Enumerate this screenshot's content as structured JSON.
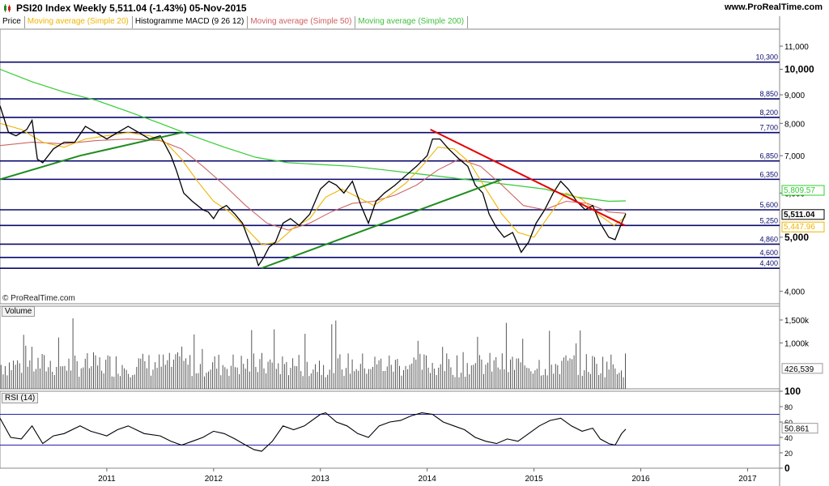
{
  "header": {
    "title": "PSI20 Index   Weekly   5,511.04 (-1.43%)   05-Nov-2015",
    "source": "www.ProRealTime.com",
    "copyright": "© ProRealTime.com"
  },
  "legend": [
    {
      "label": "Price",
      "color": "#000000"
    },
    {
      "label": "Moving average (Simple 20)",
      "color": "#f0b400"
    },
    {
      "label": "Histogramme MACD (9 26 12)",
      "color": "#000000"
    },
    {
      "label": "Moving average (Simple 50)",
      "color": "#d06060"
    },
    {
      "label": "Moving average (Simple 200)",
      "color": "#40c040"
    }
  ],
  "colors": {
    "price": "#000000",
    "ma20": "#f0b400",
    "ma50": "#cc6666",
    "ma200": "#33cc33",
    "support_lines": "#0a0a6e",
    "trend_green": "#1e8c1e",
    "trend_red": "#e60000",
    "rsi_line": "#000000",
    "rsi_band": "#2222aa"
  },
  "chart_data": [
    {
      "type": "line",
      "name": "price",
      "scale": "log",
      "ylim": [
        3800,
        11800
      ],
      "x_range": [
        2010.0,
        2017.3
      ],
      "x_ticks": [
        "2011",
        "2012",
        "2013",
        "2014",
        "2015",
        "2016",
        "2017"
      ],
      "x_tick_values": [
        2011,
        2012,
        2013,
        2014,
        2015,
        2016,
        2017
      ],
      "y_ticks": [
        4000,
        5000,
        6000,
        7000,
        8000,
        9000,
        10000,
        11000
      ],
      "y_tick_labels": [
        "4,000",
        "5,000",
        "6,000",
        "7,000",
        "8,000",
        "9,000",
        "10,000",
        "11,000"
      ],
      "y_tick_bold": [
        false,
        true,
        false,
        false,
        false,
        false,
        true,
        false
      ],
      "horizontal_levels": [
        10300,
        8850,
        8200,
        7700,
        6850,
        6350,
        5600,
        5250,
        4860,
        4600,
        4400
      ],
      "horizontal_level_labels": [
        "10,300",
        "8,850",
        "8,200",
        "7,700",
        "6,850",
        "6,350",
        "5,600",
        "5,250",
        "4,860",
        "4,600",
        "4,400"
      ],
      "trend_lines": [
        {
          "color": "green",
          "points": [
            [
              2010.0,
              6350
            ],
            [
              2010.75,
              7000
            ],
            [
              2011.7,
              7700
            ]
          ]
        },
        {
          "color": "green",
          "points": [
            [
              2012.45,
              4400
            ],
            [
              2014.7,
              6350
            ]
          ]
        },
        {
          "color": "red",
          "points": [
            [
              2014.03,
              7800
            ],
            [
              2015.85,
              5250
            ]
          ]
        }
      ],
      "price": [
        [
          2010.0,
          8600
        ],
        [
          2010.08,
          7700
        ],
        [
          2010.15,
          7600
        ],
        [
          2010.25,
          7800
        ],
        [
          2010.3,
          8100
        ],
        [
          2010.35,
          6900
        ],
        [
          2010.4,
          6800
        ],
        [
          2010.5,
          7200
        ],
        [
          2010.6,
          7400
        ],
        [
          2010.7,
          7400
        ],
        [
          2010.8,
          7900
        ],
        [
          2010.9,
          7700
        ],
        [
          2011.0,
          7500
        ],
        [
          2011.1,
          7700
        ],
        [
          2011.2,
          7900
        ],
        [
          2011.3,
          7700
        ],
        [
          2011.4,
          7500
        ],
        [
          2011.5,
          7600
        ],
        [
          2011.55,
          7300
        ],
        [
          2011.6,
          7000
        ],
        [
          2011.65,
          6600
        ],
        [
          2011.72,
          6000
        ],
        [
          2011.8,
          5800
        ],
        [
          2011.9,
          5600
        ],
        [
          2011.95,
          5550
        ],
        [
          2012.0,
          5400
        ],
        [
          2012.05,
          5600
        ],
        [
          2012.12,
          5700
        ],
        [
          2012.2,
          5500
        ],
        [
          2012.27,
          5300
        ],
        [
          2012.32,
          5000
        ],
        [
          2012.38,
          4700
        ],
        [
          2012.42,
          4450
        ],
        [
          2012.47,
          4600
        ],
        [
          2012.52,
          4800
        ],
        [
          2012.58,
          4900
        ],
        [
          2012.65,
          5300
        ],
        [
          2012.72,
          5400
        ],
        [
          2012.8,
          5250
        ],
        [
          2012.9,
          5500
        ],
        [
          2013.0,
          6100
        ],
        [
          2013.08,
          6300
        ],
        [
          2013.15,
          6200
        ],
        [
          2013.22,
          6000
        ],
        [
          2013.3,
          6300
        ],
        [
          2013.38,
          5700
        ],
        [
          2013.45,
          5300
        ],
        [
          2013.52,
          5800
        ],
        [
          2013.6,
          6000
        ],
        [
          2013.7,
          6200
        ],
        [
          2013.8,
          6450
        ],
        [
          2013.9,
          6700
        ],
        [
          2014.0,
          7000
        ],
        [
          2014.05,
          7500
        ],
        [
          2014.12,
          7500
        ],
        [
          2014.2,
          7200
        ],
        [
          2014.3,
          6900
        ],
        [
          2014.38,
          6700
        ],
        [
          2014.45,
          6200
        ],
        [
          2014.52,
          6000
        ],
        [
          2014.58,
          5500
        ],
        [
          2014.65,
          5200
        ],
        [
          2014.72,
          5000
        ],
        [
          2014.8,
          5100
        ],
        [
          2014.88,
          4700
        ],
        [
          2014.95,
          4900
        ],
        [
          2015.02,
          5300
        ],
        [
          2015.1,
          5600
        ],
        [
          2015.18,
          6000
        ],
        [
          2015.25,
          6300
        ],
        [
          2015.32,
          6100
        ],
        [
          2015.4,
          5800
        ],
        [
          2015.48,
          5600
        ],
        [
          2015.55,
          5700
        ],
        [
          2015.62,
          5300
        ],
        [
          2015.7,
          5000
        ],
        [
          2015.76,
          4950
        ],
        [
          2015.82,
          5300
        ],
        [
          2015.86,
          5511
        ]
      ],
      "ma20": [
        [
          2010.0,
          8000
        ],
        [
          2010.2,
          7800
        ],
        [
          2010.4,
          7400
        ],
        [
          2010.6,
          7250
        ],
        [
          2010.8,
          7500
        ],
        [
          2011.0,
          7600
        ],
        [
          2011.2,
          7700
        ],
        [
          2011.4,
          7600
        ],
        [
          2011.55,
          7400
        ],
        [
          2011.7,
          6900
        ],
        [
          2011.85,
          6300
        ],
        [
          2012.0,
          5800
        ],
        [
          2012.15,
          5550
        ],
        [
          2012.3,
          5200
        ],
        [
          2012.45,
          4850
        ],
        [
          2012.6,
          4900
        ],
        [
          2012.75,
          5200
        ],
        [
          2012.9,
          5400
        ],
        [
          2013.05,
          5900
        ],
        [
          2013.2,
          6100
        ],
        [
          2013.35,
          5900
        ],
        [
          2013.5,
          5700
        ],
        [
          2013.65,
          5950
        ],
        [
          2013.8,
          6250
        ],
        [
          2013.95,
          6700
        ],
        [
          2014.1,
          7250
        ],
        [
          2014.25,
          7200
        ],
        [
          2014.4,
          6800
        ],
        [
          2014.55,
          6100
        ],
        [
          2014.7,
          5500
        ],
        [
          2014.85,
          5100
        ],
        [
          2015.0,
          5000
        ],
        [
          2015.15,
          5500
        ],
        [
          2015.3,
          6000
        ],
        [
          2015.45,
          5850
        ],
        [
          2015.6,
          5500
        ],
        [
          2015.75,
          5250
        ],
        [
          2015.86,
          5447
        ]
      ],
      "ma50": [
        [
          2010.0,
          7300
        ],
        [
          2010.3,
          7400
        ],
        [
          2010.6,
          7350
        ],
        [
          2010.9,
          7450
        ],
        [
          2011.2,
          7500
        ],
        [
          2011.5,
          7450
        ],
        [
          2011.7,
          7200
        ],
        [
          2011.9,
          6700
        ],
        [
          2012.1,
          6200
        ],
        [
          2012.3,
          5700
        ],
        [
          2012.5,
          5300
        ],
        [
          2012.7,
          5150
        ],
        [
          2012.9,
          5300
        ],
        [
          2013.1,
          5550
        ],
        [
          2013.3,
          5750
        ],
        [
          2013.5,
          5800
        ],
        [
          2013.7,
          5950
        ],
        [
          2013.9,
          6200
        ],
        [
          2014.1,
          6600
        ],
        [
          2014.3,
          6900
        ],
        [
          2014.5,
          6700
        ],
        [
          2014.7,
          6200
        ],
        [
          2014.9,
          5700
        ],
        [
          2015.1,
          5600
        ],
        [
          2015.3,
          5800
        ],
        [
          2015.5,
          5750
        ],
        [
          2015.7,
          5550
        ],
        [
          2015.86,
          5520
        ]
      ],
      "ma200": [
        [
          2010.0,
          10000
        ],
        [
          2010.3,
          9500
        ],
        [
          2010.6,
          9100
        ],
        [
          2010.9,
          8800
        ],
        [
          2011.2,
          8400
        ],
        [
          2011.5,
          8000
        ],
        [
          2011.8,
          7600
        ],
        [
          2012.1,
          7250
        ],
        [
          2012.4,
          6950
        ],
        [
          2012.7,
          6800
        ],
        [
          2013.0,
          6750
        ],
        [
          2013.3,
          6700
        ],
        [
          2013.6,
          6600
        ],
        [
          2013.9,
          6500
        ],
        [
          2014.2,
          6400
        ],
        [
          2014.5,
          6300
        ],
        [
          2014.8,
          6200
        ],
        [
          2015.1,
          6100
        ],
        [
          2015.4,
          5900
        ],
        [
          2015.7,
          5800
        ],
        [
          2015.86,
          5809.57
        ]
      ],
      "last_values": [
        {
          "label": "5,809.57",
          "value": 5809.57,
          "color": "#33cc33"
        },
        {
          "label": "5,511.04",
          "value": 5511.04,
          "color": "#000000"
        },
        {
          "label": "5,447.96",
          "value": 5447.96,
          "color": "#f0b400"
        }
      ]
    },
    {
      "type": "bar",
      "name": "volume",
      "title": "Volume",
      "ylim": [
        0,
        1800000
      ],
      "y_ticks": [
        1000000,
        1500000
      ],
      "y_tick_labels": [
        "1,000k",
        "1,500k"
      ],
      "last_value_label": "426,539",
      "last_value": 426539
    },
    {
      "type": "line",
      "name": "rsi",
      "title": "RSI (14)",
      "ylim": [
        0,
        100
      ],
      "y_ticks": [
        0,
        20,
        40,
        60,
        80,
        100
      ],
      "y_tick_labels": [
        "0",
        "20",
        "40",
        "60",
        "80",
        "100"
      ],
      "bands": [
        30,
        70
      ],
      "last_value_label": "50.861",
      "last_value": 50.861,
      "values": [
        [
          2010.0,
          65
        ],
        [
          2010.1,
          40
        ],
        [
          2010.2,
          38
        ],
        [
          2010.3,
          55
        ],
        [
          2010.4,
          32
        ],
        [
          2010.5,
          42
        ],
        [
          2010.6,
          45
        ],
        [
          2010.75,
          55
        ],
        [
          2010.85,
          48
        ],
        [
          2011.0,
          42
        ],
        [
          2011.1,
          50
        ],
        [
          2011.2,
          55
        ],
        [
          2011.35,
          45
        ],
        [
          2011.5,
          42
        ],
        [
          2011.6,
          35
        ],
        [
          2011.7,
          30
        ],
        [
          2011.8,
          35
        ],
        [
          2011.9,
          40
        ],
        [
          2012.0,
          48
        ],
        [
          2012.1,
          45
        ],
        [
          2012.2,
          38
        ],
        [
          2012.3,
          30
        ],
        [
          2012.38,
          24
        ],
        [
          2012.45,
          22
        ],
        [
          2012.55,
          35
        ],
        [
          2012.65,
          55
        ],
        [
          2012.75,
          50
        ],
        [
          2012.85,
          55
        ],
        [
          2013.0,
          70
        ],
        [
          2013.05,
          72
        ],
        [
          2013.15,
          60
        ],
        [
          2013.25,
          55
        ],
        [
          2013.35,
          45
        ],
        [
          2013.45,
          40
        ],
        [
          2013.55,
          55
        ],
        [
          2013.65,
          60
        ],
        [
          2013.75,
          62
        ],
        [
          2013.85,
          68
        ],
        [
          2013.95,
          72
        ],
        [
          2014.05,
          70
        ],
        [
          2014.15,
          60
        ],
        [
          2014.25,
          55
        ],
        [
          2014.35,
          50
        ],
        [
          2014.45,
          40
        ],
        [
          2014.55,
          35
        ],
        [
          2014.65,
          32
        ],
        [
          2014.75,
          38
        ],
        [
          2014.85,
          35
        ],
        [
          2014.95,
          45
        ],
        [
          2015.05,
          55
        ],
        [
          2015.15,
          62
        ],
        [
          2015.25,
          65
        ],
        [
          2015.35,
          55
        ],
        [
          2015.45,
          48
        ],
        [
          2015.55,
          52
        ],
        [
          2015.62,
          38
        ],
        [
          2015.7,
          32
        ],
        [
          2015.76,
          30
        ],
        [
          2015.82,
          45
        ],
        [
          2015.86,
          50.861
        ]
      ]
    }
  ]
}
